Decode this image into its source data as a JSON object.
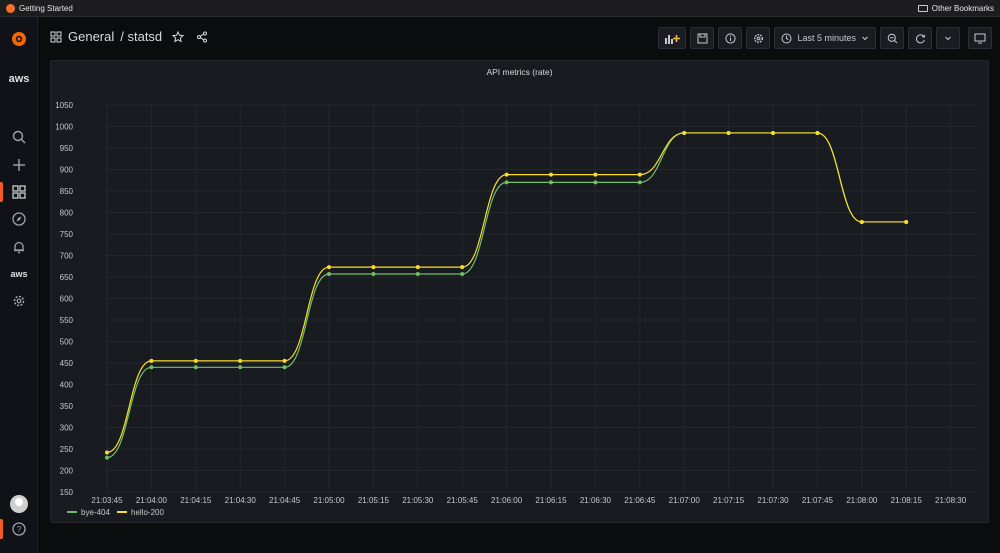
{
  "browser": {
    "bookmark_left": "Getting Started",
    "bookmark_right": "Other Bookmarks"
  },
  "sidebar": {
    "aws_label": "aws",
    "aws_label_2": "aws"
  },
  "header": {
    "folder": "General",
    "dashboard": "/ statsd"
  },
  "toolbar": {
    "time_range": "Last 5 minutes"
  },
  "colors": {
    "accent": "#f05a28",
    "series_green": "#73bf69",
    "series_yellow": "#fade2a"
  },
  "chart_data": {
    "type": "line",
    "title": "API metrics (rate)",
    "x_ticks": [
      "21:03:45",
      "21:04:00",
      "21:04:15",
      "21:04:30",
      "21:04:45",
      "21:05:00",
      "21:05:15",
      "21:05:30",
      "21:05:45",
      "21:06:00",
      "21:06:15",
      "21:06:30",
      "21:06:45",
      "21:07:00",
      "21:07:15",
      "21:07:30",
      "21:07:45",
      "21:08:00",
      "21:08:15",
      "21:08:30"
    ],
    "y_ticks": [
      150,
      200,
      250,
      300,
      350,
      400,
      450,
      500,
      550,
      600,
      650,
      700,
      750,
      800,
      850,
      900,
      950,
      1000,
      1050
    ],
    "ylim": [
      150,
      1050
    ],
    "grid": true,
    "legend_placement": "bottom-left",
    "x": [
      "21:03:45",
      "21:04:00",
      "21:04:15",
      "21:04:30",
      "21:04:45",
      "21:05:00",
      "21:05:15",
      "21:05:30",
      "21:05:45",
      "21:06:00",
      "21:06:15",
      "21:06:30",
      "21:06:45",
      "21:07:00",
      "21:07:15",
      "21:07:30",
      "21:07:45",
      "21:08:00",
      "21:08:15"
    ],
    "series": [
      {
        "name": "bye-404",
        "color": "#73bf69",
        "values": [
          230,
          440,
          440,
          440,
          440,
          657,
          657,
          657,
          657,
          870,
          870,
          870,
          870,
          985,
          985,
          985,
          985,
          778,
          778
        ]
      },
      {
        "name": "hello-200",
        "color": "#fade2a",
        "values": [
          242,
          455,
          455,
          455,
          455,
          673,
          673,
          673,
          673,
          888,
          888,
          888,
          888,
          985,
          985,
          985,
          985,
          778,
          778
        ]
      }
    ]
  }
}
